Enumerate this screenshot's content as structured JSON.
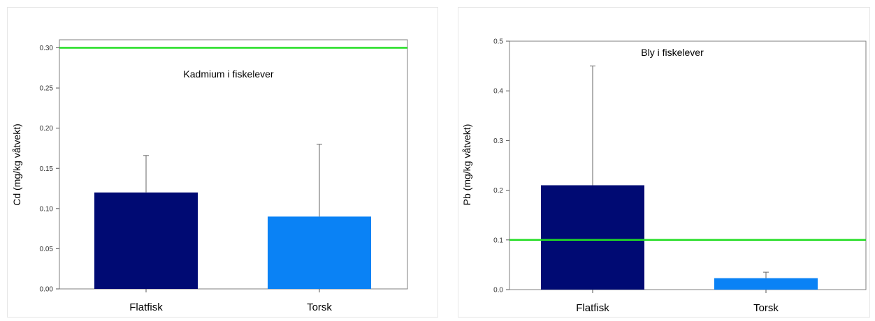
{
  "chart_data": [
    {
      "type": "bar",
      "title": "Kadmium i fiskelever",
      "xlabel": "",
      "ylabel": "Cd (mg/kg våtvekt)",
      "categories": [
        "Flatfisk",
        "Torsk"
      ],
      "values": [
        0.12,
        0.09
      ],
      "error_upper": [
        0.166,
        0.18
      ],
      "bar_colors": [
        "#000a73",
        "#0a82f5"
      ],
      "ylim": [
        0,
        0.31
      ],
      "yticks": [
        0.0,
        0.05,
        0.1,
        0.15,
        0.2,
        0.25,
        0.3
      ],
      "ytick_labels": [
        "0.00",
        "0.05",
        "0.10",
        "0.15",
        "0.20",
        "0.25",
        "0.30"
      ],
      "reference_line": {
        "value": 0.3,
        "color": "#22dd22"
      },
      "grid": false
    },
    {
      "type": "bar",
      "title": "Bly i fiskelever",
      "xlabel": "",
      "ylabel": "Pb (mg/kg våtvekt)",
      "categories": [
        "Flatfisk",
        "Torsk"
      ],
      "values": [
        0.21,
        0.023
      ],
      "error_upper": [
        0.45,
        0.035
      ],
      "bar_colors": [
        "#000a73",
        "#0a82f5"
      ],
      "ylim": [
        0,
        0.5
      ],
      "yticks": [
        0.0,
        0.1,
        0.2,
        0.3,
        0.4,
        0.5
      ],
      "ytick_labels": [
        "0.0",
        "0.1",
        "0.2",
        "0.3",
        "0.4",
        "0.5"
      ],
      "reference_line": {
        "value": 0.1,
        "color": "#22dd22"
      },
      "grid": false
    }
  ]
}
